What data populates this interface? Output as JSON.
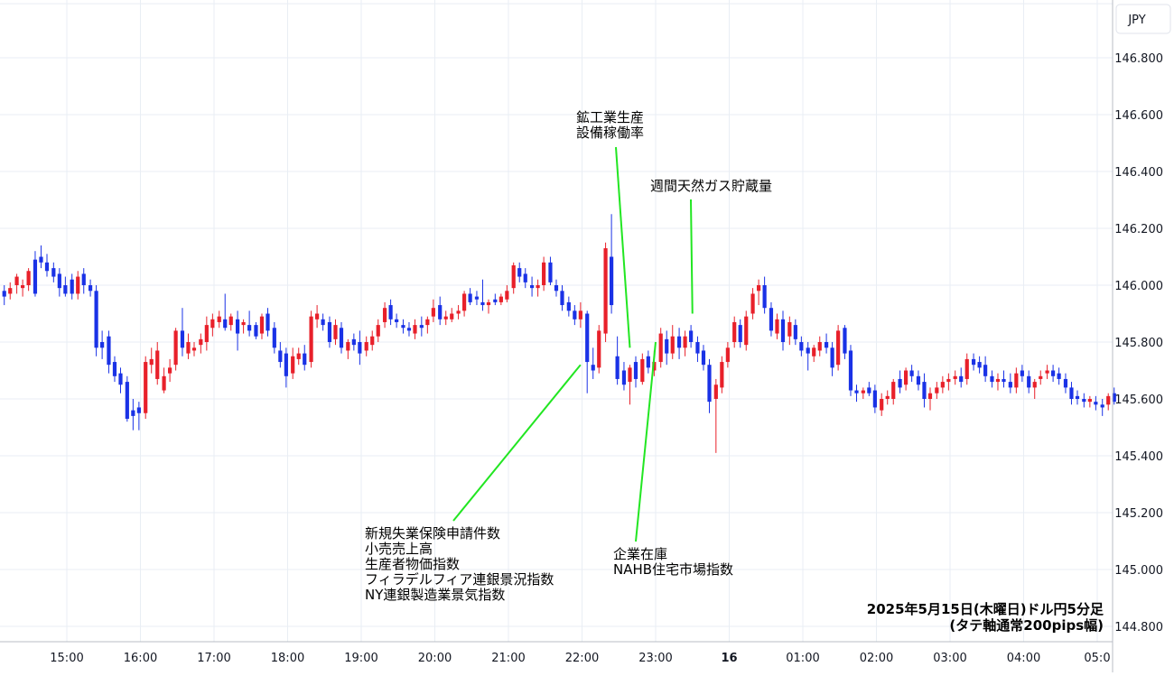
{
  "chart_data": {
    "type": "candlestick",
    "currency": "JPY",
    "caption": [
      "2025年5月15日(木曜日)ドル円5分足",
      "(タテ軸通常200pips幅)"
    ],
    "ylim": [
      144.75,
      146.98
    ],
    "y_ticks": [
      "146.800",
      "146.600",
      "146.400",
      "146.200",
      "146.000",
      "145.800",
      "145.600",
      "145.400",
      "145.200",
      "145.000",
      "144.800"
    ],
    "y_tick_values": [
      146.8,
      146.6,
      146.4,
      146.2,
      146.0,
      145.8,
      145.6,
      145.4,
      145.2,
      145.0,
      144.8
    ],
    "x_ticks": [
      {
        "label": "15:00",
        "hour": 15,
        "bold": false
      },
      {
        "label": "16:00",
        "hour": 16,
        "bold": false
      },
      {
        "label": "17:00",
        "hour": 17,
        "bold": false
      },
      {
        "label": "18:00",
        "hour": 18,
        "bold": false
      },
      {
        "label": "19:00",
        "hour": 19,
        "bold": false
      },
      {
        "label": "20:00",
        "hour": 20,
        "bold": false
      },
      {
        "label": "21:00",
        "hour": 21,
        "bold": false
      },
      {
        "label": "22:00",
        "hour": 22,
        "bold": false
      },
      {
        "label": "23:00",
        "hour": 23,
        "bold": false
      },
      {
        "label": "16",
        "hour": 24,
        "bold": true
      },
      {
        "label": "01:00",
        "hour": 25,
        "bold": false
      },
      {
        "label": "02:00",
        "hour": 26,
        "bold": false
      },
      {
        "label": "03:00",
        "hour": 27,
        "bold": false
      },
      {
        "label": "04:00",
        "hour": 28,
        "bold": false
      },
      {
        "label": "05:0",
        "hour": 29,
        "bold": false
      }
    ],
    "colors": {
      "up": "#e8202a",
      "down": "#1a32e6",
      "grid": "#e9eef4",
      "annotation_line": "#22e622"
    },
    "candles": [
      [
        14.15,
        145.98,
        146.0,
        145.93,
        145.96
      ],
      [
        14.23,
        145.97,
        146.01,
        145.95,
        145.99
      ],
      [
        14.32,
        146.0,
        146.04,
        145.97,
        146.03
      ],
      [
        14.4,
        145.99,
        146.02,
        145.96,
        146.0
      ],
      [
        14.48,
        146.0,
        146.06,
        145.98,
        146.05
      ],
      [
        14.57,
        146.09,
        146.12,
        145.96,
        145.97
      ],
      [
        14.65,
        146.1,
        146.14,
        146.06,
        146.08
      ],
      [
        14.73,
        146.08,
        146.11,
        146.03,
        146.05
      ],
      [
        14.82,
        146.06,
        146.08,
        146.01,
        146.03
      ],
      [
        14.9,
        146.04,
        146.06,
        145.96,
        145.99
      ],
      [
        14.98,
        146.0,
        146.03,
        145.96,
        145.97
      ],
      [
        15.07,
        146.02,
        146.04,
        145.95,
        145.97
      ],
      [
        15.15,
        145.97,
        146.05,
        145.95,
        146.03
      ],
      [
        15.23,
        146.04,
        146.06,
        145.97,
        146.0
      ],
      [
        15.32,
        146.0,
        146.02,
        145.96,
        145.98
      ],
      [
        15.4,
        145.98,
        146.0,
        145.75,
        145.78
      ],
      [
        15.48,
        145.8,
        145.84,
        145.74,
        145.78
      ],
      [
        15.57,
        145.82,
        145.84,
        145.69,
        145.72
      ],
      [
        15.65,
        145.73,
        145.75,
        145.66,
        145.68
      ],
      [
        15.73,
        145.69,
        145.71,
        145.62,
        145.65
      ],
      [
        15.82,
        145.66,
        145.68,
        145.52,
        145.53
      ],
      [
        15.9,
        145.56,
        145.6,
        145.49,
        145.54
      ],
      [
        15.98,
        145.57,
        145.59,
        145.49,
        145.55
      ],
      [
        16.07,
        145.55,
        145.75,
        145.53,
        145.73
      ],
      [
        16.15,
        145.72,
        145.78,
        145.69,
        145.74
      ],
      [
        16.23,
        145.67,
        145.8,
        145.65,
        145.77
      ],
      [
        16.32,
        145.63,
        145.71,
        145.62,
        145.68
      ],
      [
        16.4,
        145.69,
        145.74,
        145.66,
        145.71
      ],
      [
        16.48,
        145.72,
        145.85,
        145.7,
        145.84
      ],
      [
        16.57,
        145.84,
        145.92,
        145.75,
        145.78
      ],
      [
        16.65,
        145.76,
        145.83,
        145.74,
        145.8
      ],
      [
        16.73,
        145.77,
        145.8,
        145.75,
        145.78
      ],
      [
        16.82,
        145.79,
        145.83,
        145.76,
        145.81
      ],
      [
        16.9,
        145.8,
        145.89,
        145.77,
        145.86
      ],
      [
        16.98,
        145.85,
        145.9,
        145.82,
        145.88
      ],
      [
        17.07,
        145.87,
        145.91,
        145.85,
        145.89
      ],
      [
        17.15,
        145.88,
        145.97,
        145.84,
        145.85
      ],
      [
        17.23,
        145.86,
        145.9,
        145.84,
        145.89
      ],
      [
        17.32,
        145.88,
        145.91,
        145.77,
        145.83
      ],
      [
        17.4,
        145.86,
        145.88,
        145.83,
        145.87
      ],
      [
        17.48,
        145.86,
        145.91,
        145.82,
        145.84
      ],
      [
        17.57,
        145.86,
        145.87,
        145.81,
        145.82
      ],
      [
        17.65,
        145.83,
        145.9,
        145.81,
        145.89
      ],
      [
        17.73,
        145.9,
        145.92,
        145.82,
        145.84
      ],
      [
        17.82,
        145.85,
        145.87,
        145.76,
        145.78
      ],
      [
        17.9,
        145.77,
        145.8,
        145.71,
        145.73
      ],
      [
        17.98,
        145.76,
        145.78,
        145.64,
        145.68
      ],
      [
        18.07,
        145.69,
        145.78,
        145.67,
        145.75
      ],
      [
        18.15,
        145.74,
        145.78,
        145.72,
        145.76
      ],
      [
        18.23,
        145.76,
        145.79,
        145.7,
        145.72
      ],
      [
        18.32,
        145.73,
        145.91,
        145.71,
        145.89
      ],
      [
        18.4,
        145.88,
        145.93,
        145.85,
        145.9
      ],
      [
        18.48,
        145.88,
        145.9,
        145.84,
        145.86
      ],
      [
        18.57,
        145.87,
        145.89,
        145.78,
        145.8
      ],
      [
        18.65,
        145.81,
        145.88,
        145.79,
        145.86
      ],
      [
        18.73,
        145.85,
        145.87,
        145.76,
        145.78
      ],
      [
        18.82,
        145.77,
        145.81,
        145.74,
        145.8
      ],
      [
        18.9,
        145.81,
        145.83,
        145.77,
        145.79
      ],
      [
        18.98,
        145.8,
        145.84,
        145.72,
        145.76
      ],
      [
        19.07,
        145.77,
        145.82,
        145.75,
        145.8
      ],
      [
        19.15,
        145.79,
        145.84,
        145.77,
        145.82
      ],
      [
        19.23,
        145.82,
        145.88,
        145.8,
        145.86
      ],
      [
        19.32,
        145.87,
        145.94,
        145.85,
        145.92
      ],
      [
        19.4,
        145.93,
        145.95,
        145.86,
        145.88
      ],
      [
        19.48,
        145.88,
        145.9,
        145.85,
        145.87
      ],
      [
        19.57,
        145.86,
        145.88,
        145.83,
        145.85
      ],
      [
        19.65,
        145.85,
        145.87,
        145.82,
        145.84
      ],
      [
        19.73,
        145.83,
        145.88,
        145.81,
        145.86
      ],
      [
        19.82,
        145.86,
        145.89,
        145.82,
        145.85
      ],
      [
        19.9,
        145.86,
        145.89,
        145.83,
        145.88
      ],
      [
        19.98,
        145.89,
        145.95,
        145.87,
        145.92
      ],
      [
        20.07,
        145.93,
        145.96,
        145.86,
        145.88
      ],
      [
        20.15,
        145.88,
        145.91,
        145.86,
        145.89
      ],
      [
        20.23,
        145.88,
        145.92,
        145.87,
        145.9
      ],
      [
        20.32,
        145.9,
        145.93,
        145.88,
        145.91
      ],
      [
        20.4,
        145.91,
        145.98,
        145.89,
        145.97
      ],
      [
        20.48,
        145.97,
        145.99,
        145.93,
        145.94
      ],
      [
        20.57,
        145.96,
        145.98,
        145.93,
        145.95
      ],
      [
        20.65,
        145.94,
        146.02,
        145.91,
        145.93
      ],
      [
        20.73,
        145.93,
        145.95,
        145.9,
        145.94
      ],
      [
        20.82,
        145.95,
        145.97,
        145.93,
        145.94
      ],
      [
        20.9,
        145.94,
        145.97,
        145.93,
        145.96
      ],
      [
        20.98,
        145.95,
        146.0,
        145.94,
        145.98
      ],
      [
        21.07,
        145.99,
        146.08,
        145.97,
        146.07
      ],
      [
        21.15,
        146.06,
        146.08,
        146.01,
        146.03
      ],
      [
        21.23,
        146.04,
        146.06,
        145.99,
        146.01
      ],
      [
        21.32,
        146.0,
        146.03,
        145.96,
        145.99
      ],
      [
        21.4,
        145.99,
        146.02,
        145.96,
        146.0
      ],
      [
        21.48,
        146.0,
        146.1,
        145.98,
        146.08
      ],
      [
        21.57,
        146.08,
        146.1,
        146.0,
        146.01
      ],
      [
        21.65,
        146.0,
        146.02,
        145.96,
        145.98
      ],
      [
        21.73,
        145.98,
        146.0,
        145.91,
        145.93
      ],
      [
        21.82,
        145.94,
        145.96,
        145.89,
        145.91
      ],
      [
        21.9,
        145.91,
        145.93,
        145.86,
        145.88
      ],
      [
        21.98,
        145.88,
        145.94,
        145.85,
        145.91
      ],
      [
        22.07,
        145.9,
        145.91,
        145.62,
        145.73
      ],
      [
        22.15,
        145.72,
        145.78,
        145.67,
        145.7
      ],
      [
        22.23,
        145.71,
        145.86,
        145.69,
        145.84
      ],
      [
        22.32,
        145.83,
        146.15,
        145.8,
        146.13
      ],
      [
        22.4,
        146.1,
        146.25,
        145.9,
        145.93
      ],
      [
        22.48,
        145.75,
        145.82,
        145.65,
        145.67
      ],
      [
        22.57,
        145.7,
        145.73,
        145.63,
        145.65
      ],
      [
        22.65,
        145.66,
        145.72,
        145.58,
        145.71
      ],
      [
        22.73,
        145.73,
        145.75,
        145.64,
        145.67
      ],
      [
        22.82,
        145.66,
        145.76,
        145.65,
        145.74
      ],
      [
        22.9,
        145.75,
        145.77,
        145.69,
        145.71
      ],
      [
        22.98,
        145.7,
        145.77,
        145.68,
        145.73
      ],
      [
        23.07,
        145.73,
        145.85,
        145.71,
        145.83
      ],
      [
        23.15,
        145.81,
        145.84,
        145.72,
        145.76
      ],
      [
        23.23,
        145.76,
        145.86,
        145.74,
        145.82
      ],
      [
        23.32,
        145.82,
        145.85,
        145.74,
        145.78
      ],
      [
        23.4,
        145.78,
        145.84,
        145.75,
        145.82
      ],
      [
        23.48,
        145.84,
        145.86,
        145.78,
        145.8
      ],
      [
        23.57,
        145.8,
        145.82,
        145.73,
        145.76
      ],
      [
        23.65,
        145.77,
        145.79,
        145.7,
        145.72
      ],
      [
        23.73,
        145.72,
        145.74,
        145.55,
        145.59
      ],
      [
        23.82,
        145.6,
        145.67,
        145.41,
        145.65
      ],
      [
        23.9,
        145.64,
        145.75,
        145.62,
        145.73
      ],
      [
        23.98,
        145.73,
        145.8,
        145.71,
        145.78
      ],
      [
        24.07,
        145.8,
        145.89,
        145.78,
        145.87
      ],
      [
        24.15,
        145.86,
        145.88,
        145.78,
        145.8
      ],
      [
        24.23,
        145.79,
        145.91,
        145.77,
        145.89
      ],
      [
        24.32,
        145.9,
        145.99,
        145.88,
        145.97
      ],
      [
        24.4,
        145.98,
        146.02,
        145.93,
        146.0
      ],
      [
        24.48,
        146.0,
        146.03,
        145.9,
        145.92
      ],
      [
        24.57,
        145.92,
        145.94,
        145.82,
        145.84
      ],
      [
        24.65,
        145.83,
        145.9,
        145.81,
        145.88
      ],
      [
        24.73,
        145.88,
        145.91,
        145.77,
        145.8
      ],
      [
        24.82,
        145.82,
        145.89,
        145.79,
        145.87
      ],
      [
        24.9,
        145.86,
        145.88,
        145.79,
        145.81
      ],
      [
        24.98,
        145.8,
        145.82,
        145.75,
        145.77
      ],
      [
        25.07,
        145.78,
        145.8,
        145.7,
        145.76
      ],
      [
        25.15,
        145.75,
        145.79,
        145.73,
        145.78
      ],
      [
        25.23,
        145.77,
        145.82,
        145.75,
        145.8
      ],
      [
        25.32,
        145.8,
        145.83,
        145.76,
        145.78
      ],
      [
        25.4,
        145.78,
        145.8,
        145.68,
        145.71
      ],
      [
        25.48,
        145.72,
        145.86,
        145.7,
        145.84
      ],
      [
        25.57,
        145.85,
        145.86,
        145.74,
        145.76
      ],
      [
        25.65,
        145.77,
        145.79,
        145.61,
        145.63
      ],
      [
        25.73,
        145.63,
        145.65,
        145.59,
        145.62
      ],
      [
        25.82,
        145.62,
        145.64,
        145.6,
        145.63
      ],
      [
        25.9,
        145.64,
        145.66,
        145.61,
        145.62
      ],
      [
        25.98,
        145.63,
        145.65,
        145.55,
        145.57
      ],
      [
        26.07,
        145.56,
        145.62,
        145.54,
        145.6
      ],
      [
        26.15,
        145.6,
        145.63,
        145.58,
        145.61
      ],
      [
        26.23,
        145.6,
        145.67,
        145.58,
        145.66
      ],
      [
        26.32,
        145.67,
        145.7,
        145.62,
        145.64
      ],
      [
        26.4,
        145.65,
        145.71,
        145.63,
        145.7
      ],
      [
        26.48,
        145.7,
        145.72,
        145.66,
        145.68
      ],
      [
        26.57,
        145.68,
        145.7,
        145.63,
        145.65
      ],
      [
        26.65,
        145.66,
        145.69,
        145.57,
        145.6
      ],
      [
        26.73,
        145.6,
        145.64,
        145.56,
        145.62
      ],
      [
        26.82,
        145.62,
        145.66,
        145.6,
        145.64
      ],
      [
        26.9,
        145.64,
        145.68,
        145.62,
        145.66
      ],
      [
        26.98,
        145.66,
        145.69,
        145.63,
        145.67
      ],
      [
        27.07,
        145.67,
        145.7,
        145.65,
        145.68
      ],
      [
        27.15,
        145.68,
        145.71,
        145.64,
        145.66
      ],
      [
        27.23,
        145.67,
        145.76,
        145.65,
        145.74
      ],
      [
        27.32,
        145.74,
        145.76,
        145.7,
        145.72
      ],
      [
        27.4,
        145.73,
        145.75,
        145.69,
        145.71
      ],
      [
        27.48,
        145.72,
        145.75,
        145.66,
        145.68
      ],
      [
        27.57,
        145.68,
        145.7,
        145.64,
        145.66
      ],
      [
        27.65,
        145.66,
        145.69,
        145.63,
        145.67
      ],
      [
        27.73,
        145.67,
        145.7,
        145.64,
        145.66
      ],
      [
        27.82,
        145.66,
        145.69,
        145.62,
        145.64
      ],
      [
        27.9,
        145.64,
        145.71,
        145.62,
        145.69
      ],
      [
        27.98,
        145.7,
        145.72,
        145.66,
        145.68
      ],
      [
        28.07,
        145.68,
        145.7,
        145.62,
        145.64
      ],
      [
        28.15,
        145.64,
        145.67,
        145.6,
        145.66
      ],
      [
        28.23,
        145.67,
        145.7,
        145.65,
        145.68
      ],
      [
        28.32,
        145.69,
        145.72,
        145.67,
        145.7
      ],
      [
        28.4,
        145.7,
        145.72,
        145.66,
        145.68
      ],
      [
        28.48,
        145.69,
        145.71,
        145.65,
        145.67
      ],
      [
        28.57,
        145.67,
        145.69,
        145.62,
        145.64
      ],
      [
        28.65,
        145.64,
        145.66,
        145.58,
        145.6
      ],
      [
        28.73,
        145.61,
        145.63,
        145.58,
        145.6
      ],
      [
        28.82,
        145.6,
        145.62,
        145.57,
        145.59
      ],
      [
        28.9,
        145.59,
        145.61,
        145.57,
        145.6
      ],
      [
        28.98,
        145.59,
        145.61,
        145.56,
        145.58
      ],
      [
        29.07,
        145.58,
        145.6,
        145.54,
        145.57
      ],
      [
        29.15,
        145.58,
        145.62,
        145.56,
        145.61
      ],
      [
        29.23,
        145.62,
        145.64,
        145.58,
        145.59
      ]
    ],
    "annotations": [
      {
        "lines": [
          "新規失業保険申請件数",
          "小売売上高",
          "生産者物価指数",
          "フィラデルフィア連銀景況指数",
          "NY連銀製造業景気指数"
        ],
        "target_hour": 21.98,
        "target_price": 145.72,
        "label_anchor": "top"
      },
      {
        "lines": [
          "鉱工業生産",
          "設備稼働率"
        ],
        "target_hour": 22.65,
        "target_price": 145.78,
        "label_anchor": "bottom"
      },
      {
        "lines": [
          "企業在庫",
          "NAHB住宅市場指数"
        ],
        "target_hour": 23.0,
        "target_price": 145.8,
        "label_anchor": "top"
      },
      {
        "lines": [
          "週間天然ガス貯蔵量"
        ],
        "target_hour": 23.5,
        "target_price": 145.9,
        "label_anchor": "bottom"
      }
    ]
  }
}
